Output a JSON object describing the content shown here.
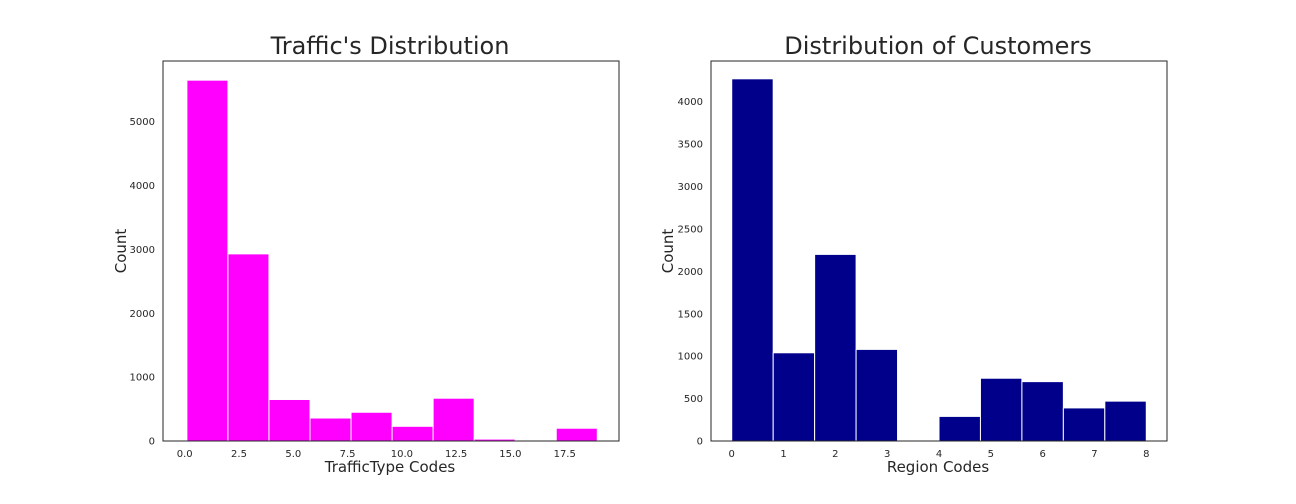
{
  "chart_data": [
    {
      "type": "bar",
      "chart_kind": "histogram",
      "title": "Traffic's Distribution",
      "xlabel": "TrafficType Codes",
      "ylabel": "Count",
      "bar_color": "#ff00ff",
      "bin_edges": [
        0.1,
        1.99,
        3.88,
        5.77,
        7.66,
        9.55,
        11.44,
        13.33,
        15.22,
        17.11,
        19.0
      ],
      "values": [
        5650,
        2930,
        650,
        360,
        450,
        230,
        670,
        30,
        10,
        200
      ],
      "xlim": [
        -1,
        20
      ],
      "ylim": [
        0,
        5950
      ],
      "xticks": [
        0.0,
        2.5,
        5.0,
        7.5,
        10.0,
        12.5,
        15.0,
        17.5
      ],
      "xtick_labels": [
        "0.0",
        "2.5",
        "5.0",
        "7.5",
        "10.0",
        "12.5",
        "15.0",
        "17.5"
      ],
      "yticks": [
        0,
        1000,
        2000,
        3000,
        4000,
        5000
      ],
      "ytick_labels": [
        "0",
        "1000",
        "2000",
        "3000",
        "4000",
        "5000"
      ],
      "grid": false
    },
    {
      "type": "bar",
      "chart_kind": "histogram",
      "title": "Distribution of Customers",
      "xlabel": "Region Codes",
      "ylabel": "Count",
      "bar_color": "#00008b",
      "bin_edges": [
        0.0,
        0.8,
        1.6,
        2.4,
        3.2,
        4.0,
        4.8,
        5.6,
        6.4,
        7.2,
        8.0
      ],
      "values": [
        4270,
        1040,
        2200,
        1080,
        0,
        290,
        740,
        700,
        390,
        470
      ],
      "xlim": [
        -0.4,
        8.4
      ],
      "ylim": [
        0,
        4480
      ],
      "xticks": [
        0,
        1,
        2,
        3,
        4,
        5,
        6,
        7,
        8
      ],
      "xtick_labels": [
        "0",
        "1",
        "2",
        "3",
        "4",
        "5",
        "6",
        "7",
        "8"
      ],
      "yticks": [
        0,
        500,
        1000,
        1500,
        2000,
        2500,
        3000,
        3500,
        4000
      ],
      "ytick_labels": [
        "0",
        "500",
        "1000",
        "1500",
        "2000",
        "2500",
        "3000",
        "3500",
        "4000"
      ],
      "grid": false
    }
  ]
}
